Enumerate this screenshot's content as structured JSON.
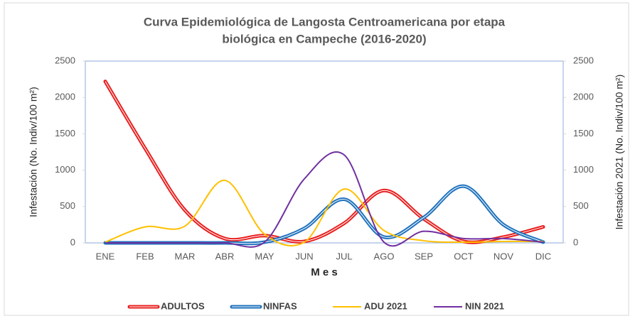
{
  "chart_data": {
    "type": "line",
    "title": [
      "Curva Epidemiológica de Langosta Centroamericana por etapa",
      "biológica en Campeche (2016-2020)"
    ],
    "x_label": "M e s",
    "y_label": "Infestación (No. Indiv/100 m²)",
    "y2_label": "Infestación 2021 (No. Indiv/100 m²)",
    "categories": [
      "ENE",
      "FEB",
      "MAR",
      "ABR",
      "MAY",
      "JUN",
      "JUL",
      "AGO",
      "SEP",
      "OCT",
      "NOV",
      "DIC"
    ],
    "ylim": [
      0,
      2500
    ],
    "yticks": [
      0,
      500,
      1000,
      1500,
      2000,
      2500
    ],
    "y2lim": [
      0,
      2500
    ],
    "y2ticks": [
      0,
      500,
      1000,
      1500,
      2000,
      2500
    ],
    "grid": false,
    "legend": "bottom",
    "smooth": true,
    "series": [
      {
        "name": "ADULTOS",
        "color": "#e8201f",
        "style": "double",
        "values": [
          2220,
          1300,
          450,
          60,
          100,
          20,
          270,
          720,
          330,
          20,
          80,
          220
        ]
      },
      {
        "name": "NINFAS",
        "color": "#1f72bd",
        "style": "double",
        "values": [
          0,
          0,
          0,
          0,
          10,
          200,
          600,
          80,
          350,
          780,
          250,
          10
        ]
      },
      {
        "name": "ADU 2021",
        "color": "#ffc000",
        "style": "single",
        "axis": "y2",
        "values": [
          10,
          220,
          230,
          860,
          120,
          10,
          740,
          170,
          30,
          10,
          20,
          20
        ]
      },
      {
        "name": "NIN 2021",
        "color": "#7030a0",
        "style": "single",
        "axis": "y2",
        "values": [
          0,
          0,
          0,
          0,
          10,
          880,
          1210,
          10,
          160,
          60,
          60,
          10
        ]
      }
    ]
  }
}
